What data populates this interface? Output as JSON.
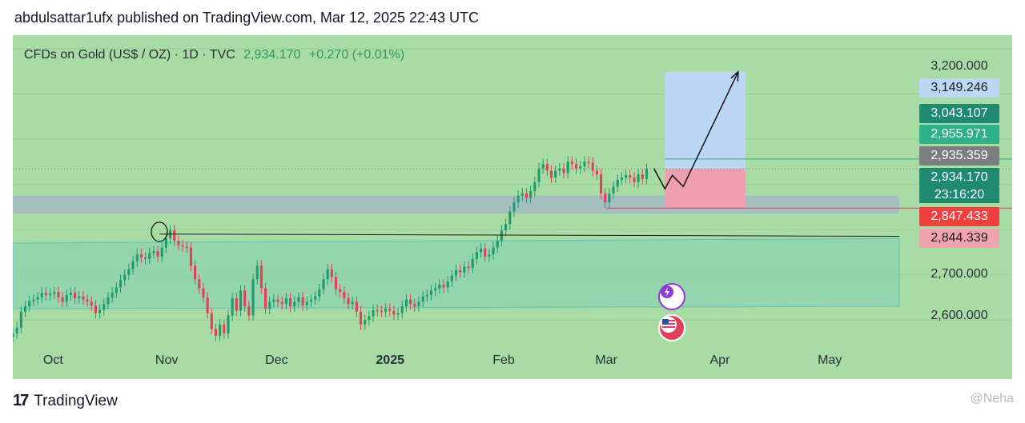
{
  "header": {
    "publish_line": "abdulsattar1ufx published on TradingView.com, Mar 12, 2025 22:43 UTC"
  },
  "legend": {
    "symbol": "CFDs on Gold (US$ / OZ) · 1D · TVC",
    "price": "2,934.170",
    "change": "+0.270 (+0.01%)"
  },
  "price_labels": [
    {
      "text": "3,149.246",
      "color": "#bcd6f3",
      "text_color": "#1c1c1c",
      "name": "price-label-target"
    },
    {
      "text": "3,043.107",
      "color": "#1f8a70",
      "text_color": "#ffffff",
      "name": "price-label-upper"
    },
    {
      "text": "2,955.971",
      "color": "#2fb089",
      "text_color": "#ffffff",
      "name": "price-label-mid"
    },
    {
      "text": "2,935.359",
      "color": "#7d7d7d",
      "text_color": "#ffffff",
      "name": "price-label-level"
    },
    {
      "text": "2,934.170",
      "color": "#1f8a70",
      "text_color": "#ffffff",
      "name": "price-label-last"
    },
    {
      "text": "2,847.433",
      "color": "#ef4040",
      "text_color": "#ffffff",
      "name": "price-label-stop"
    },
    {
      "text": "2,844.339",
      "color": "#f2a3b0",
      "text_color": "#1c1c1c",
      "name": "price-label-support"
    }
  ],
  "countdown": "23:16:20",
  "footer": {
    "logo_mark": "17",
    "logo_text": "TradingView",
    "watermark": "@Neha"
  },
  "colors": {
    "background": "#a9dba5",
    "up": "#1f9c6f",
    "down": "#e0405a",
    "channel_fill": "#8fd3b0",
    "zone_fill": "#a3b8c6",
    "target_fill": "#bcd6f3",
    "stop_fill": "#ee9fb0"
  },
  "icons": {
    "event_top": "lightning-event-icon",
    "event_bottom": "us-flag-event-icon"
  },
  "chart_data": {
    "type": "candlestick",
    "title": "CFDs on Gold (US$ / OZ) · 1D · TVC",
    "ylim": [
      2540,
      3230
    ],
    "y_ticks": [
      2600,
      2700,
      3200
    ],
    "x_ticks": [
      {
        "label": "Oct",
        "date": "2024-10-01"
      },
      {
        "label": "Nov",
        "date": "2024-11-01"
      },
      {
        "label": "Dec",
        "date": "2024-12-01"
      },
      {
        "label": "2025",
        "date": "2025-01-01",
        "bold": true
      },
      {
        "label": "Feb",
        "date": "2025-02-01"
      },
      {
        "label": "Mar",
        "date": "2025-03-01"
      },
      {
        "label": "Apr",
        "date": "2025-04-01"
      },
      {
        "label": "May",
        "date": "2025-05-01"
      }
    ],
    "xlim": [
      "2024-09-20",
      "2025-05-25"
    ],
    "ohlc_closes": [
      2570,
      2583,
      2618,
      2630,
      2642,
      2645,
      2650,
      2660,
      2655,
      2658,
      2662,
      2650,
      2640,
      2655,
      2660,
      2648,
      2652,
      2645,
      2640,
      2632,
      2615,
      2622,
      2635,
      2650,
      2660,
      2672,
      2688,
      2700,
      2712,
      2730,
      2745,
      2738,
      2735,
      2748,
      2752,
      2740,
      2760,
      2780,
      2798,
      2775,
      2765,
      2762,
      2760,
      2720,
      2690,
      2670,
      2650,
      2615,
      2580,
      2565,
      2590,
      2570,
      2610,
      2648,
      2620,
      2665,
      2630,
      2610,
      2690,
      2720,
      2670,
      2625,
      2640,
      2645,
      2640,
      2635,
      2648,
      2630,
      2640,
      2650,
      2632,
      2640,
      2645,
      2652,
      2668,
      2690,
      2712,
      2695,
      2668,
      2662,
      2648,
      2635,
      2640,
      2618,
      2590,
      2600,
      2608,
      2622,
      2620,
      2618,
      2625,
      2620,
      2612,
      2615,
      2630,
      2645,
      2635,
      2630,
      2640,
      2652,
      2655,
      2665,
      2670,
      2678,
      2672,
      2685,
      2698,
      2710,
      2705,
      2718,
      2715,
      2735,
      2750,
      2758,
      2740,
      2745,
      2760,
      2775,
      2798,
      2812,
      2840,
      2860,
      2875,
      2880,
      2870,
      2885,
      2905,
      2935,
      2945,
      2930,
      2915,
      2930,
      2935,
      2925,
      2950,
      2945,
      2935,
      2940,
      2950,
      2948,
      2930,
      2922,
      2880,
      2860,
      2880,
      2895,
      2910,
      2915,
      2920,
      2915,
      2905,
      2922,
      2912,
      2934
    ],
    "series_dates": [
      "2024-09-20",
      "2025-03-12"
    ],
    "annotations": {
      "resistance_line": [
        {
          "date": "2024-10-30",
          "value": 2790
        },
        {
          "date": "2025-05-20",
          "value": 2785
        }
      ],
      "channel": {
        "top_left": 2770,
        "bottom_left": 2625,
        "top_right": 2780,
        "bottom_right": 2630,
        "from": "2024-09-20",
        "to": "2025-05-20"
      },
      "zone": {
        "low": 2835,
        "high": 2875,
        "from": "2024-09-20",
        "to": "2025-05-20"
      },
      "target_box": {
        "low": 2934,
        "high": 3149,
        "from": "2025-03-17",
        "to": "2025-04-08"
      },
      "stop_box": {
        "low": 2847,
        "high": 2934,
        "from": "2025-03-17",
        "to": "2025-04-08"
      },
      "projection": [
        {
          "date": "2025-03-14",
          "value": 2935
        },
        {
          "date": "2025-03-17",
          "value": 2890
        },
        {
          "date": "2025-03-19",
          "value": 2920
        },
        {
          "date": "2025-03-22",
          "value": 2895
        },
        {
          "date": "2025-04-06",
          "value": 3149
        }
      ],
      "circle_marker": {
        "date": "2024-10-30",
        "value": 2795
      },
      "level_line": {
        "value": 2955.971
      }
    }
  }
}
